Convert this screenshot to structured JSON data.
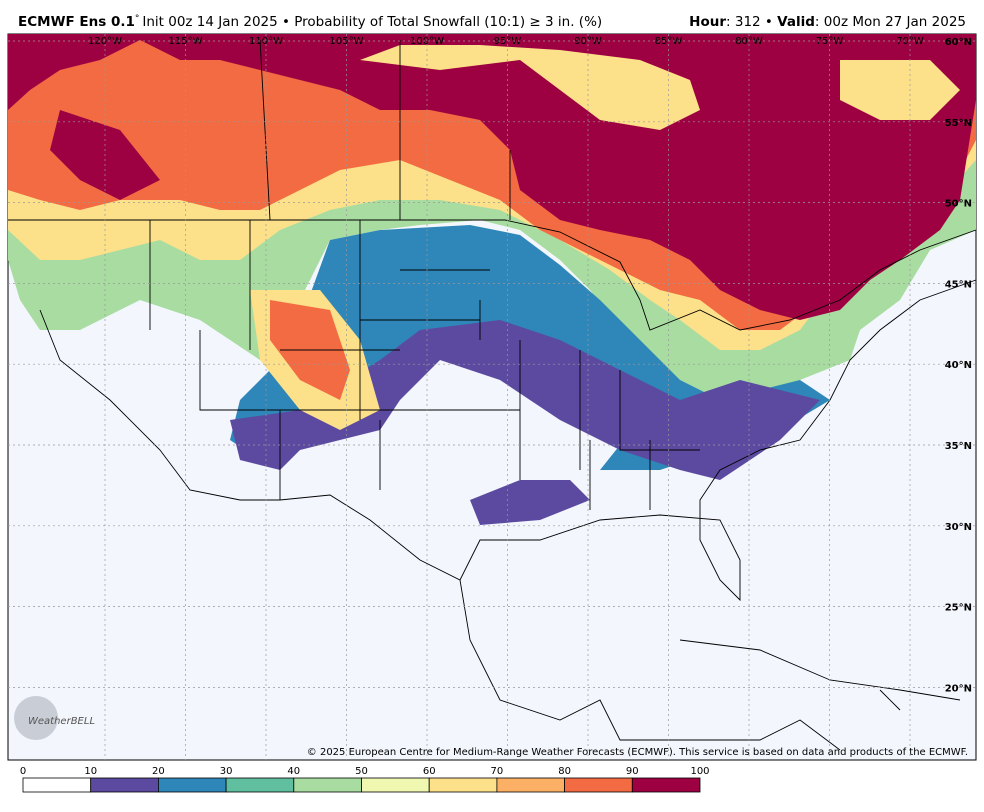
{
  "header": {
    "model": "ECMWF Ens 0.1",
    "degree": "°",
    "init": "Init 00z 14 Jan 2025 • Probability of Total Snowfall (10:1) ≥ 3 in. (%)",
    "hour_label": "Hour",
    "hour": ": 312 • ",
    "valid_label": "Valid",
    "valid": ": 00z Mon 27 Jan 2025"
  },
  "map": {
    "lon_labels": [
      "120°W",
      "115°W",
      "110°W",
      "105°W",
      "100°W",
      "95°W",
      "90°W",
      "85°W",
      "80°W",
      "75°W",
      "70°W"
    ],
    "lat_labels": [
      "60°N",
      "55°N",
      "50°N",
      "45°N",
      "40°N",
      "35°N",
      "30°N",
      "25°N",
      "20°N"
    ],
    "logo": "WeatherBELL",
    "copyright": "© 2025 European Centre for Medium-Range Weather Forecasts (ECMWF). This service is based on data and products of the ECMWF."
  },
  "legend": {
    "ticks": [
      0,
      10,
      20,
      30,
      40,
      50,
      60,
      70,
      80,
      90,
      100
    ],
    "colors": [
      "#ffffff",
      "#5b4aa0",
      "#2f86b8",
      "#5fbf9e",
      "#a8dca0",
      "#f0f7b0",
      "#fde08a",
      "#fcb065",
      "#f26b43",
      "#9e0142"
    ]
  }
}
